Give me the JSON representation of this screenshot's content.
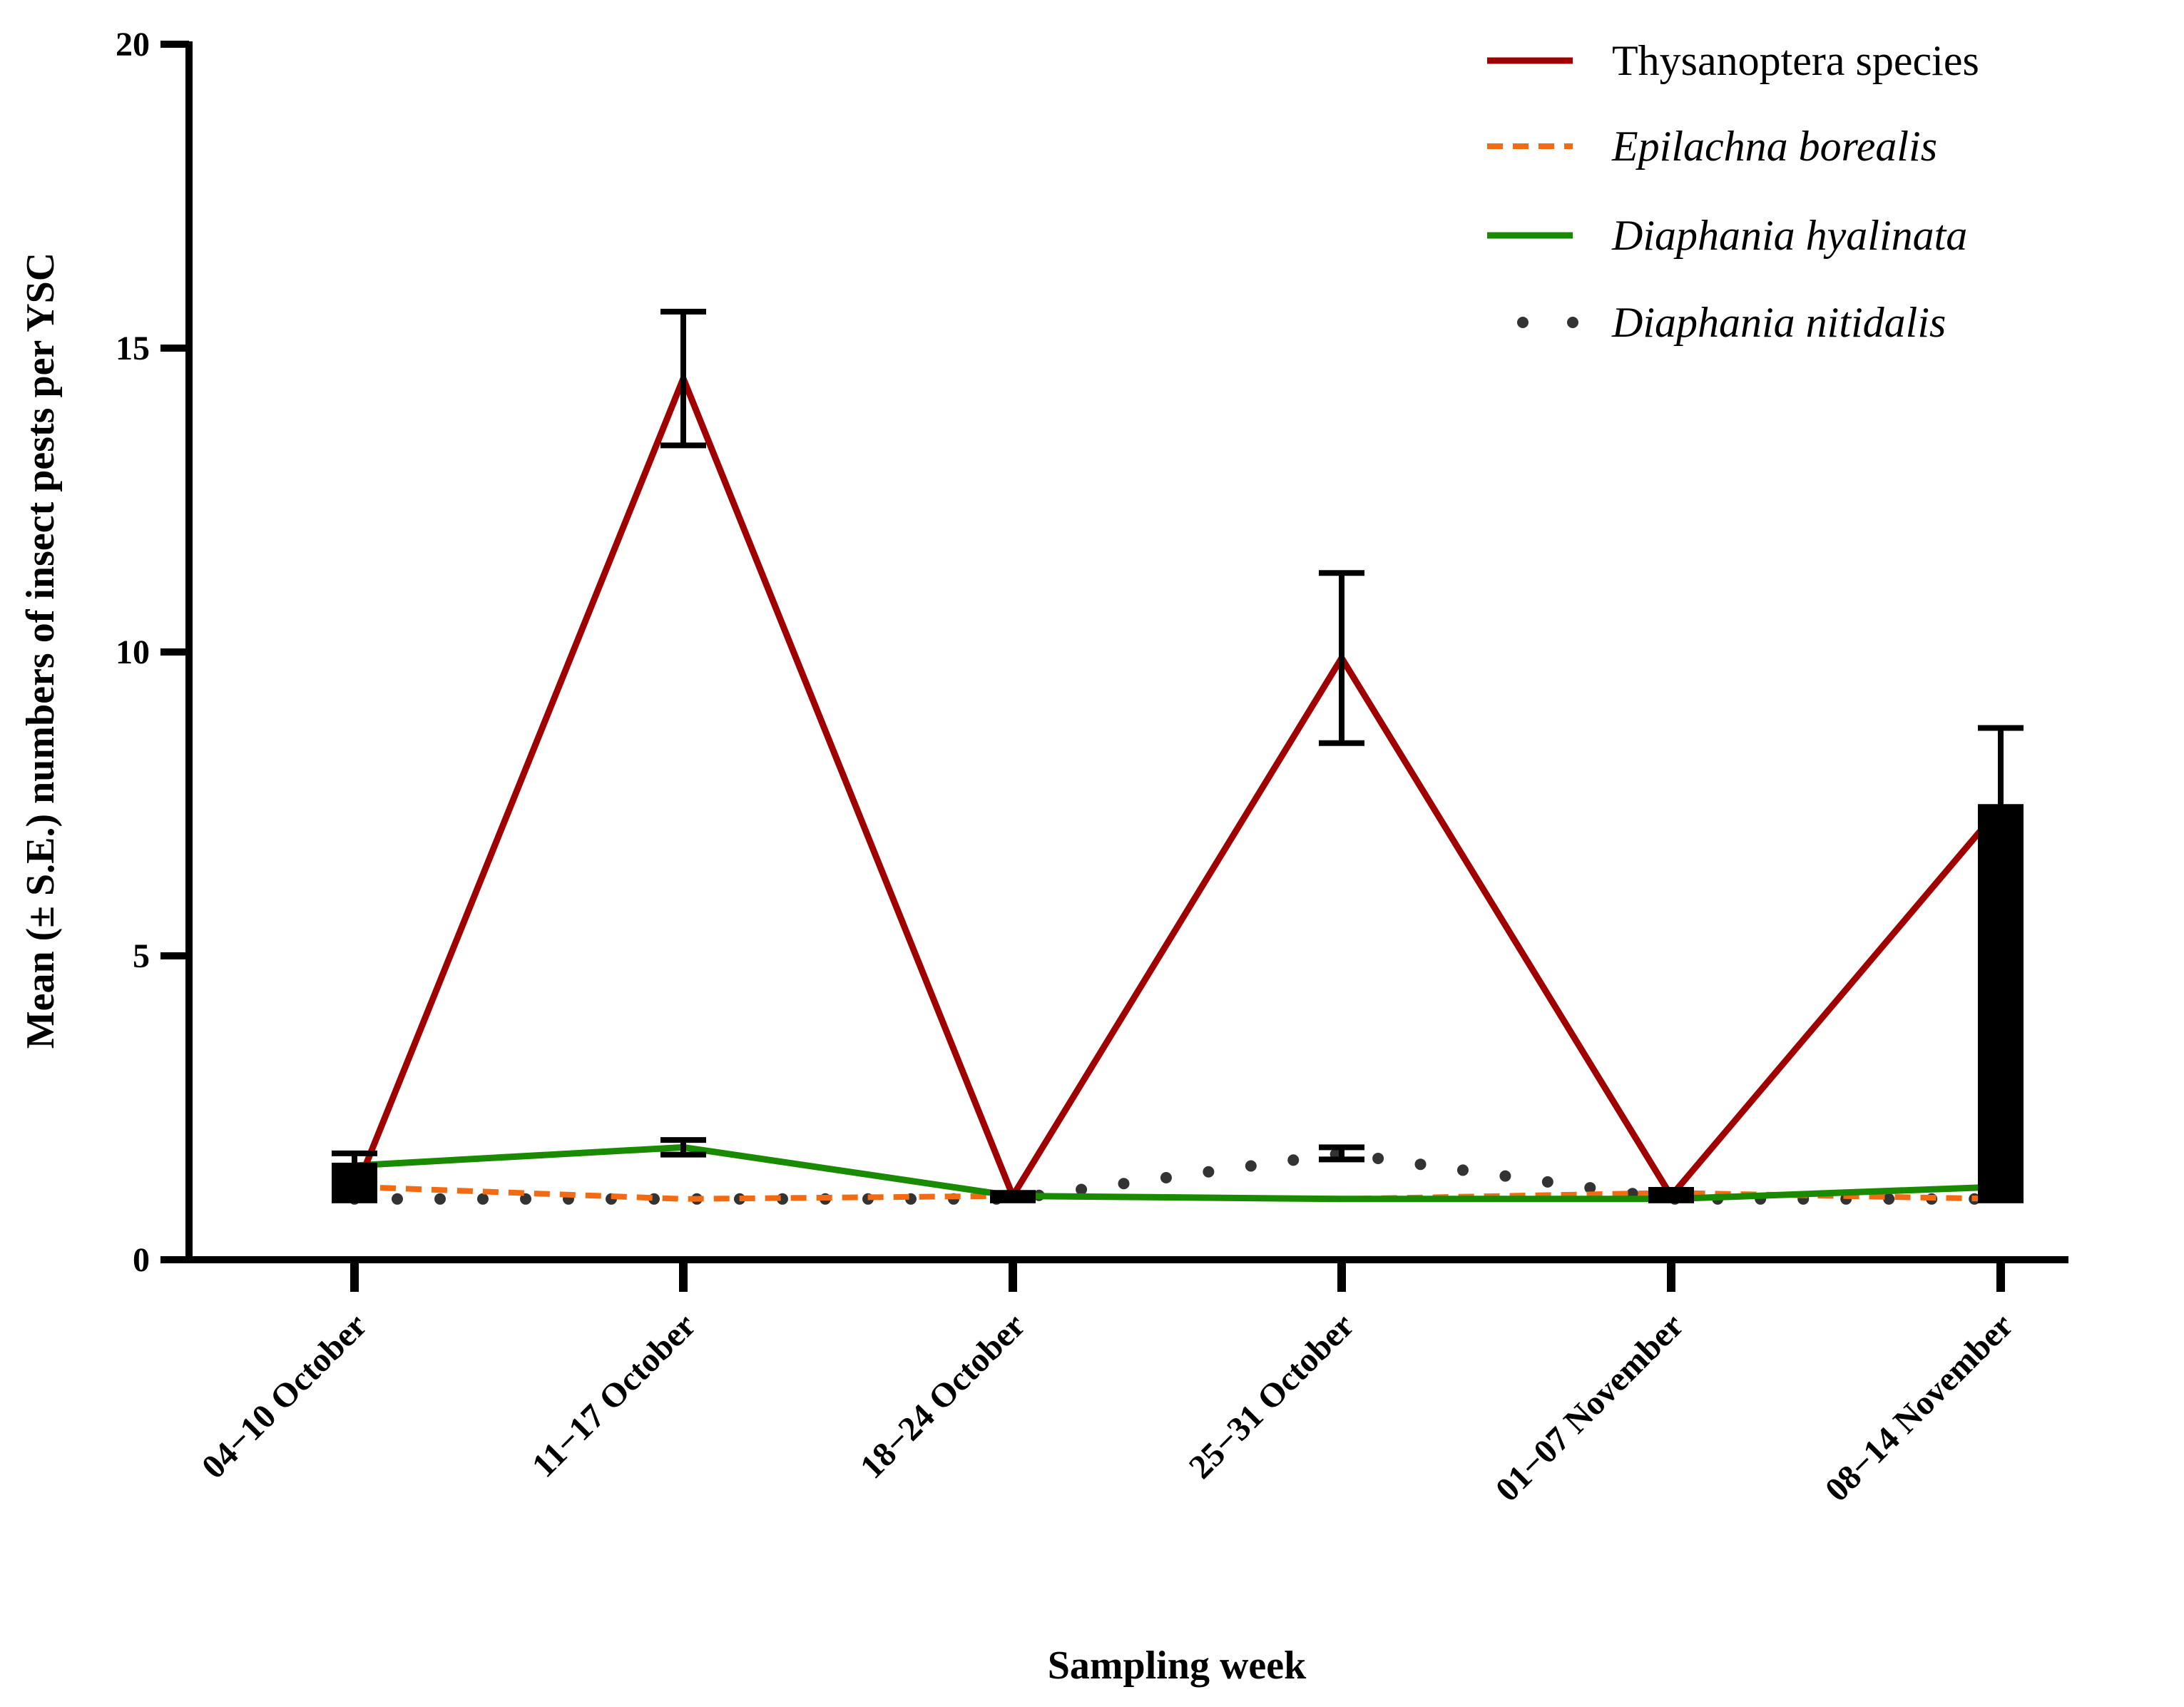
{
  "chart_data": {
    "type": "line",
    "title": "",
    "xlabel": "Sampling week",
    "ylabel": "Mean (± S.E.) numbers of insect pests per YSC",
    "ylim": [
      0,
      20
    ],
    "yticks": [
      "0",
      "5",
      "10",
      "15",
      "20"
    ],
    "categories": [
      "04−10 October",
      "11−17 October",
      "18−24 October",
      "25−31 October",
      "01−07 November",
      "08−14 November"
    ],
    "legend_position": "top-right",
    "series": [
      {
        "name": "Thysanoptera species",
        "italic": false,
        "color": "#a00000",
        "style": "solid",
        "values": [
          1.1,
          14.5,
          1.05,
          9.9,
          1.05,
          7.45
        ],
        "errors": [
          0.1,
          1.1,
          0.05,
          1.4,
          0.05,
          1.3
        ]
      },
      {
        "name": "Epilachna borealis",
        "italic": true,
        "color": "#f26a11",
        "style": "dashed",
        "values": [
          1.2,
          1.0,
          1.05,
          1.0,
          1.1,
          1.0
        ],
        "errors": [
          0.1,
          0.0,
          0.0,
          0.0,
          0.05,
          0.0
        ]
      },
      {
        "name": "Diaphania hyalinata",
        "italic": true,
        "color": "#1a8a00",
        "style": "solid",
        "values": [
          1.55,
          1.85,
          1.05,
          1.0,
          1.0,
          1.2
        ],
        "errors": [
          0.2,
          0.12,
          0.0,
          0.0,
          0.0,
          0.05
        ]
      },
      {
        "name": "Diaphania nitidalis",
        "italic": true,
        "color": "#333333",
        "style": "dotted",
        "values": [
          1.0,
          1.0,
          1.0,
          1.75,
          1.0,
          1.0
        ],
        "errors": [
          0.0,
          0.0,
          0.0,
          0.1,
          0.0,
          0.0
        ]
      }
    ]
  }
}
